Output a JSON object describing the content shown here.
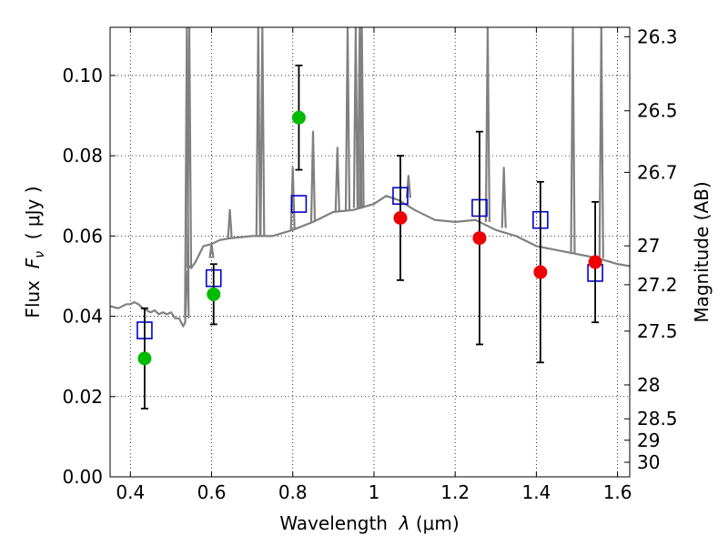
{
  "chart_data": {
    "type": "scatter",
    "title": "",
    "xlabel_parts": {
      "before": "Wavelength  ",
      "symbol": "λ",
      "after": " (μm)"
    },
    "ylabel_parts": {
      "before": "Flux  ",
      "symbol": "F",
      "sub": "ν",
      "after": "  ( μJy )"
    },
    "y2label": "Magnitude (AB)",
    "xlim": [
      0.35,
      1.63
    ],
    "ylim": [
      0.0,
      0.112
    ],
    "grid": true,
    "x_ticks": [
      {
        "value": 0.4,
        "label": "0.4"
      },
      {
        "value": 0.6,
        "label": "0.6"
      },
      {
        "value": 0.8,
        "label": "0.8"
      },
      {
        "value": 1.0,
        "label": "1"
      },
      {
        "value": 1.2,
        "label": "1.2"
      },
      {
        "value": 1.4,
        "label": "1.4"
      },
      {
        "value": 1.6,
        "label": "1.6"
      }
    ],
    "y_ticks": [
      {
        "value": 0.0,
        "label": "0.00"
      },
      {
        "value": 0.02,
        "label": "0.02"
      },
      {
        "value": 0.04,
        "label": "0.04"
      },
      {
        "value": 0.06,
        "label": "0.06"
      },
      {
        "value": 0.08,
        "label": "0.08"
      },
      {
        "value": 0.1,
        "label": "0.10"
      }
    ],
    "mag_ticks": [
      {
        "value": 26.3,
        "label": "26.3"
      },
      {
        "value": 26.5,
        "label": "26.5"
      },
      {
        "value": 26.7,
        "label": "26.7"
      },
      {
        "value": 27.0,
        "label": "27"
      },
      {
        "value": 27.2,
        "label": "27.2"
      },
      {
        "value": 27.5,
        "label": "27.5"
      },
      {
        "value": 28.0,
        "label": "28"
      },
      {
        "value": 28.5,
        "label": "28.5"
      },
      {
        "value": 29.0,
        "label": "29"
      },
      {
        "value": 30.0,
        "label": "30"
      }
    ],
    "mag_zeropoint": 23.9,
    "series": [
      {
        "name": "model spectrum",
        "kind": "line",
        "color": "#808080",
        "x": [
          0.35,
          0.37,
          0.39,
          0.4,
          0.41,
          0.42,
          0.43,
          0.44,
          0.45,
          0.46,
          0.47,
          0.48,
          0.49,
          0.5,
          0.51,
          0.52,
          0.525,
          0.53,
          0.535,
          0.54,
          0.545,
          0.55,
          0.56,
          0.57,
          0.58,
          0.6,
          0.62,
          0.65,
          0.7,
          0.75,
          0.8,
          0.85,
          0.9,
          0.95,
          1.0,
          1.03,
          1.06,
          1.1,
          1.15,
          1.2,
          1.25,
          1.3,
          1.35,
          1.4,
          1.45,
          1.5,
          1.55,
          1.6,
          1.63
        ],
        "y": [
          0.0425,
          0.042,
          0.043,
          0.043,
          0.0435,
          0.043,
          0.042,
          0.0415,
          0.041,
          0.0415,
          0.0405,
          0.041,
          0.0405,
          0.041,
          0.0395,
          0.0395,
          0.0385,
          0.0375,
          0.0385,
          0.051,
          0.0525,
          0.052,
          0.0535,
          0.0555,
          0.0575,
          0.058,
          0.059,
          0.0595,
          0.06,
          0.06,
          0.0615,
          0.0635,
          0.066,
          0.0665,
          0.068,
          0.07,
          0.069,
          0.0665,
          0.064,
          0.0635,
          0.064,
          0.0615,
          0.06,
          0.0575,
          0.0565,
          0.0555,
          0.0545,
          0.053,
          0.0525
        ]
      },
      {
        "name": "model spectrum emission lines",
        "kind": "spikes",
        "color": "#808080",
        "x": [
          0.539,
          0.545,
          0.6,
          0.645,
          0.715,
          0.725,
          0.8,
          0.85,
          0.91,
          0.935,
          0.955,
          0.965,
          0.97,
          1.085,
          1.28,
          1.32,
          1.49,
          1.56
        ],
        "base": [
          0.0395,
          0.052,
          0.0545,
          0.0595,
          0.06,
          0.06,
          0.0615,
          0.0635,
          0.066,
          0.0665,
          0.067,
          0.067,
          0.067,
          0.0695,
          0.0635,
          0.062,
          0.0555,
          0.0545
        ],
        "peak": [
          0.112,
          0.112,
          0.058,
          0.0665,
          0.112,
          0.112,
          0.077,
          0.086,
          0.082,
          0.112,
          0.112,
          0.112,
          0.112,
          0.075,
          0.112,
          0.077,
          0.112,
          0.112
        ]
      },
      {
        "name": "model photometry",
        "kind": "open-square",
        "color": "#0000cc",
        "x": [
          0.435,
          0.605,
          0.815,
          1.065,
          1.26,
          1.41,
          1.545
        ],
        "y": [
          0.0365,
          0.0495,
          0.068,
          0.07,
          0.067,
          0.064,
          0.0508
        ]
      },
      {
        "name": "observed photometry (green)",
        "kind": "filled-circle",
        "color": "#00bb00",
        "x": [
          0.435,
          0.605,
          0.815
        ],
        "y": [
          0.0295,
          0.0455,
          0.0895
        ],
        "err": [
          0.0125,
          0.0075,
          0.013
        ]
      },
      {
        "name": "observed photometry (red)",
        "kind": "filled-circle",
        "color": "#ee0000",
        "x": [
          1.065,
          1.26,
          1.41,
          1.545
        ],
        "y": [
          0.0645,
          0.0595,
          0.051,
          0.0535
        ],
        "err": [
          0.0155,
          0.0265,
          0.0225,
          0.015
        ]
      }
    ]
  }
}
